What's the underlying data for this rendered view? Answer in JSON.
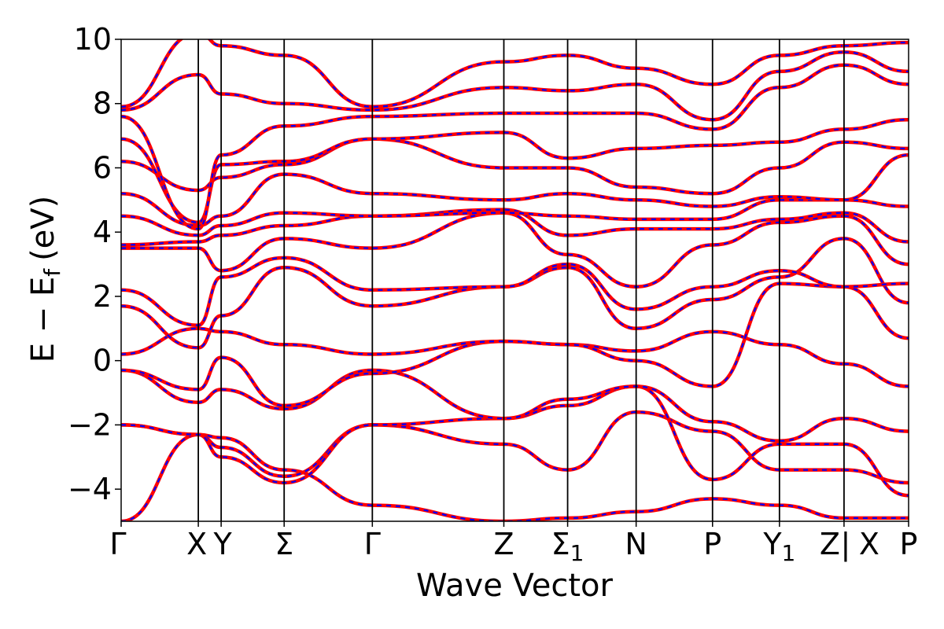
{
  "chart_data": {
    "type": "line",
    "title": "",
    "xlabel": "Wave Vector",
    "ylabel": "E − E",
    "ylabel_subscript": "f",
    "ylabel_unit": "(eV)",
    "ylim": [
      -5,
      10
    ],
    "y_ticks": [
      {
        "value": 10,
        "label": "10"
      },
      {
        "value": 8,
        "label": "8"
      },
      {
        "value": 6,
        "label": "6"
      },
      {
        "value": 4,
        "label": "4"
      },
      {
        "value": 2,
        "label": "2"
      },
      {
        "value": 0,
        "label": "0"
      },
      {
        "value": -2,
        "label": "−2"
      },
      {
        "value": -4,
        "label": "−4"
      }
    ],
    "xlim": [
      0,
      10
    ],
    "kpoints": [
      {
        "x": 0.0,
        "label": "Γ",
        "sub": ""
      },
      {
        "x": 0.98,
        "label": "X",
        "sub": ""
      },
      {
        "x": 1.27,
        "label": "Y",
        "sub": ""
      },
      {
        "x": 2.07,
        "label": "Σ",
        "sub": ""
      },
      {
        "x": 3.19,
        "label": "Γ",
        "sub": ""
      },
      {
        "x": 4.86,
        "label": "Z",
        "sub": ""
      },
      {
        "x": 5.67,
        "label": "Σ",
        "sub": "1"
      },
      {
        "x": 6.54,
        "label": "N",
        "sub": ""
      },
      {
        "x": 7.51,
        "label": "P",
        "sub": ""
      },
      {
        "x": 8.36,
        "label": "Y",
        "sub": "1"
      },
      {
        "x": 9.18,
        "label": "Z",
        "sub": ""
      },
      {
        "x": 10.0,
        "label": "P",
        "sub": ""
      }
    ],
    "segment_break": {
      "x": 9.18,
      "label": "|",
      "after_label": "X"
    },
    "grid": false,
    "legend": "none",
    "series_style": {
      "line_color": "#ff0000",
      "dash_color": "#0000ff"
    },
    "series": [
      {
        "y": [
          -5.0,
          -2.3,
          -2.4,
          -3.4,
          -4.5,
          -5.0,
          -4.9,
          -4.7,
          -4.3,
          -4.5,
          -4.9,
          -4.9
        ]
      },
      {
        "y": [
          -2.0,
          -2.3,
          -2.7,
          -3.6,
          -2.0,
          -2.6,
          -3.4,
          -1.6,
          -2.2,
          -3.4,
          -3.4,
          -3.8
        ]
      },
      {
        "y": [
          -2.0,
          -2.3,
          -3.0,
          -3.8,
          -2.0,
          -1.8,
          -1.4,
          -0.8,
          -3.7,
          -2.6,
          -2.6,
          -4.2
        ]
      },
      {
        "y": [
          -0.3,
          -1.3,
          -0.9,
          -1.5,
          -0.3,
          -1.8,
          -1.2,
          -0.8,
          -1.9,
          -2.5,
          -1.8,
          -2.2
        ]
      },
      {
        "y": [
          -0.3,
          -0.9,
          0.1,
          -1.4,
          -0.4,
          0.6,
          0.5,
          0.3,
          0.9,
          0.5,
          -0.1,
          -0.8
        ]
      },
      {
        "y": [
          0.2,
          1.0,
          0.9,
          0.5,
          0.2,
          0.6,
          0.5,
          0.0,
          -0.8,
          2.4,
          2.3,
          0.7
        ]
      },
      {
        "y": [
          1.7,
          0.4,
          1.4,
          2.9,
          1.7,
          2.3,
          2.9,
          1.0,
          1.9,
          2.6,
          3.8,
          1.8
        ]
      },
      {
        "y": [
          2.2,
          1.1,
          2.6,
          3.2,
          2.2,
          2.3,
          3.0,
          1.6,
          2.3,
          2.8,
          2.3,
          2.4
        ]
      },
      {
        "y": [
          3.5,
          3.5,
          2.8,
          3.8,
          3.5,
          4.6,
          3.3,
          2.3,
          3.6,
          4.3,
          4.5,
          3.0
        ]
      },
      {
        "y": [
          3.6,
          3.7,
          3.9,
          4.2,
          4.5,
          4.7,
          3.9,
          4.1,
          4.1,
          4.4,
          4.6,
          3.7
        ]
      },
      {
        "y": [
          4.5,
          3.9,
          4.2,
          4.6,
          4.5,
          4.6,
          4.5,
          4.4,
          4.4,
          5.0,
          5.0,
          4.8
        ]
      },
      {
        "y": [
          5.2,
          4.2,
          4.5,
          5.8,
          5.2,
          5.0,
          5.2,
          5.0,
          4.8,
          5.1,
          5.0,
          6.4
        ]
      },
      {
        "y": [
          6.2,
          5.3,
          5.7,
          6.1,
          6.9,
          6.0,
          6.0,
          5.4,
          5.2,
          6.0,
          6.8,
          6.6
        ]
      },
      {
        "y": [
          6.9,
          4.3,
          6.1,
          6.2,
          6.9,
          7.1,
          6.3,
          6.6,
          6.7,
          6.8,
          7.2,
          7.5
        ]
      },
      {
        "y": [
          7.6,
          4.1,
          6.4,
          7.3,
          7.6,
          7.7,
          7.7,
          7.7,
          7.2,
          8.5,
          9.2,
          8.6
        ]
      },
      {
        "y": [
          7.8,
          8.9,
          8.3,
          8.0,
          7.8,
          8.5,
          8.4,
          8.6,
          7.5,
          9.0,
          9.6,
          9.0
        ]
      },
      {
        "y": [
          7.9,
          10.2,
          9.8,
          9.5,
          7.9,
          9.3,
          9.5,
          9.1,
          8.6,
          9.5,
          9.8,
          9.9
        ]
      }
    ]
  }
}
